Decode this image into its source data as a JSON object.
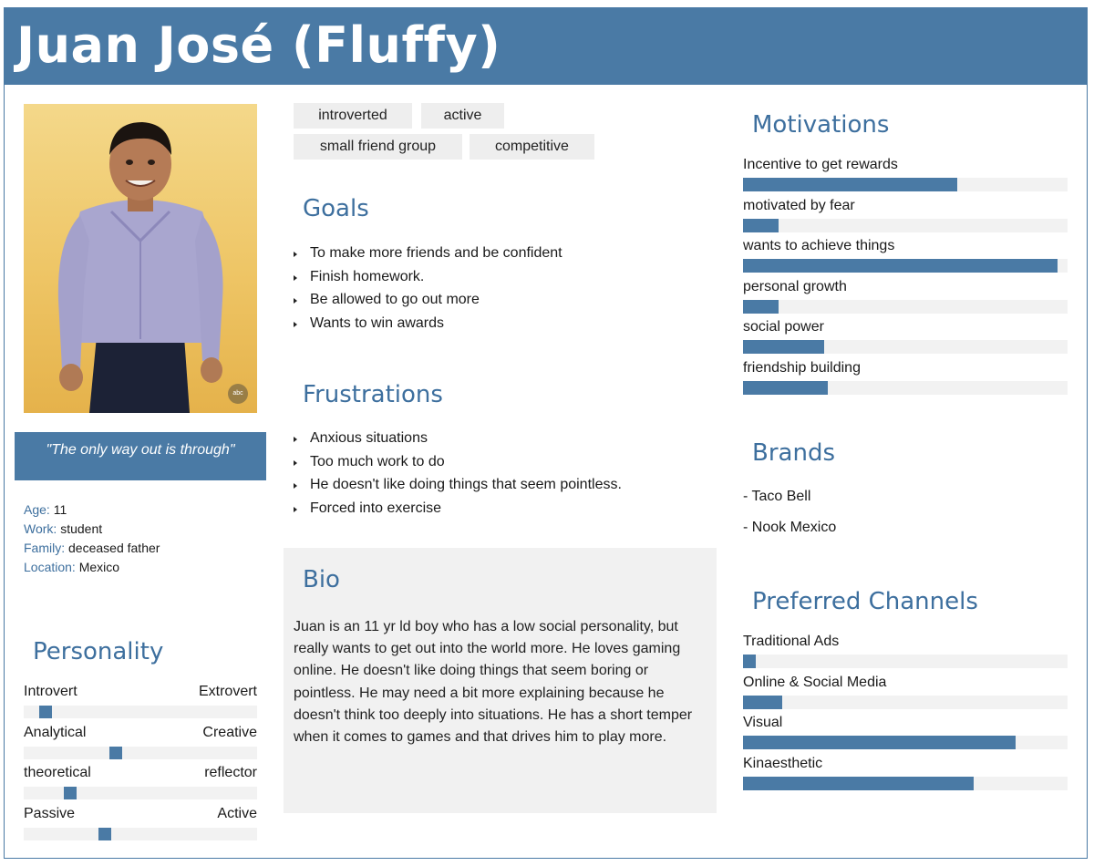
{
  "header": {
    "name": "Juan José (Fluffy)"
  },
  "photo": {
    "watermark": "abc"
  },
  "quote": "\"The only way out is through\"",
  "info": {
    "age_label": "Age:",
    "age": "11",
    "work_label": "Work:",
    "work": "student",
    "family_label": "Family:",
    "family": "deceased father",
    "location_label": "Location:",
    "location": "Mexico"
  },
  "personality": {
    "title": "Personality",
    "traits": [
      {
        "left": "Introvert",
        "right": "Extrovert",
        "level": 0.07
      },
      {
        "left": "Analytical",
        "right": "Creative",
        "level": 0.39
      },
      {
        "left": "theoretical",
        "right": "reflector",
        "level": 0.18
      },
      {
        "left": "Passive",
        "right": "Active",
        "level": 0.34
      }
    ]
  },
  "tags": [
    "introverted",
    "active",
    "small friend group",
    "competitive"
  ],
  "goals": {
    "title": "Goals",
    "items": [
      "To make more friends and be confident",
      "Finish homework.",
      "Be allowed to go out more",
      "Wants to win awards"
    ]
  },
  "frustrations": {
    "title": "Frustrations",
    "items": [
      "Anxious situations",
      "Too much work to do",
      "He doesn't like doing things that seem pointless.",
      "Forced into exercise"
    ]
  },
  "bio": {
    "title": "Bio",
    "text": "Juan is an 11 yr ld boy who has a low social personality, but really wants to get out into the world more. He loves gaming online. He doesn't like doing things that seem boring or pointless. He may need a bit more explaining because he doesn't think too deeply into situations. He has a short temper when it comes to games and that drives him to play more."
  },
  "motivations": {
    "title": "Motivations",
    "items": [
      {
        "label": "Incentive to get rewards",
        "value": 0.66
      },
      {
        "label": "motivated by fear",
        "value": 0.11
      },
      {
        "label": "wants to achieve things",
        "value": 0.97
      },
      {
        "label": "personal growth",
        "value": 0.11
      },
      {
        "label": "social power",
        "value": 0.25
      },
      {
        "label": "friendship building",
        "value": 0.26
      }
    ]
  },
  "brands": {
    "title": "Brands",
    "items": [
      "- Taco Bell",
      "- Nook Mexico"
    ]
  },
  "channels": {
    "title": "Preferred Channels",
    "items": [
      {
        "label": "Traditional Ads",
        "value": 0.04
      },
      {
        "label": "Online & Social Media",
        "value": 0.12
      },
      {
        "label": "Visual",
        "value": 0.84
      },
      {
        "label": "Kinaesthetic",
        "value": 0.71
      }
    ]
  },
  "colors": {
    "accent": "#4a7aa5",
    "track": "#f2f2f2",
    "tag_bg": "#eeeeee",
    "bio_bg": "#f1f1f1"
  }
}
